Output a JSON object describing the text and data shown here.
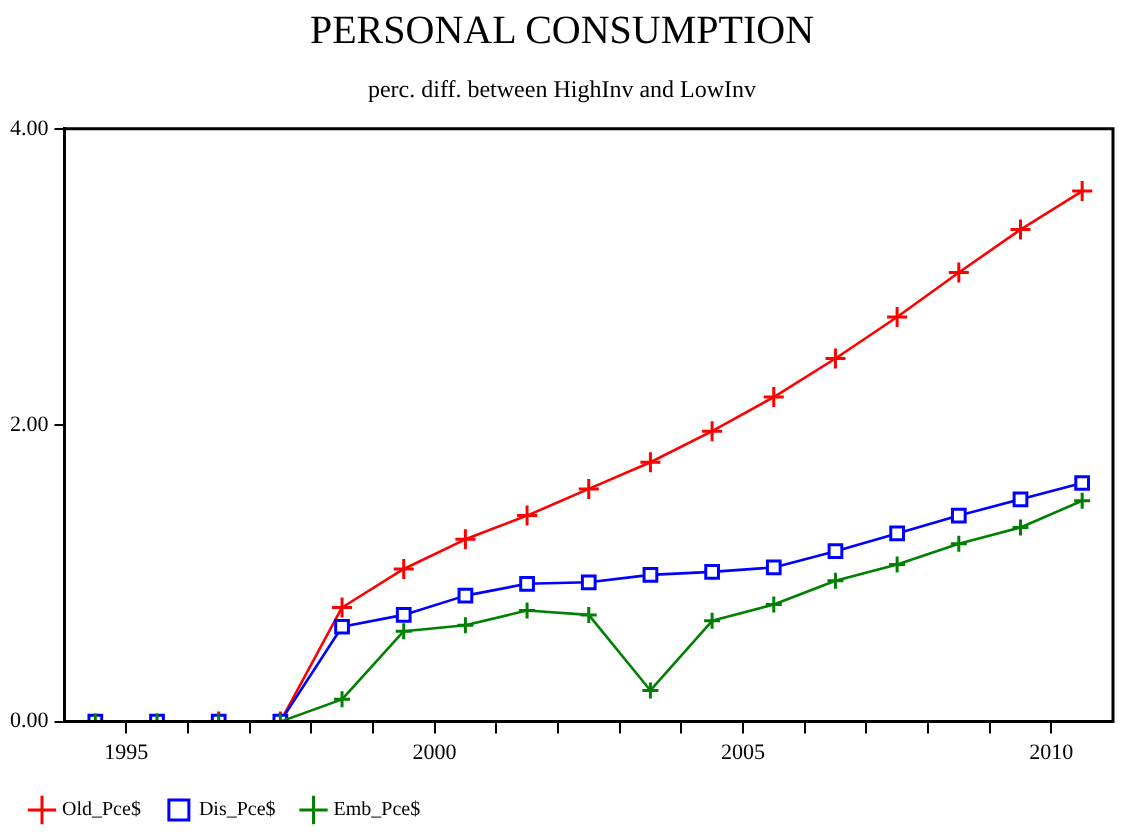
{
  "chart_data": {
    "type": "line",
    "title": "PERSONAL CONSUMPTION",
    "subtitle": "perc. diff. between HighInv and LowInv",
    "x": [
      1994.5,
      1995.5,
      1996.5,
      1997.5,
      1998.5,
      1999.5,
      2000.5,
      2001.5,
      2002.5,
      2003.5,
      2004.5,
      2005.5,
      2006.5,
      2007.5,
      2008.5,
      2009.5,
      2010.5
    ],
    "series": [
      {
        "name": "Old_Pce$",
        "color": "#ff0000",
        "marker": "cross",
        "values": [
          null,
          null,
          0,
          0,
          0.77,
          1.03,
          1.23,
          1.39,
          1.57,
          1.75,
          1.96,
          2.19,
          2.45,
          2.73,
          3.03,
          3.32,
          3.58
        ]
      },
      {
        "name": "Dis_Pce$",
        "color": "#0000ff",
        "marker": "square",
        "values": [
          0,
          0,
          0,
          0,
          0.64,
          0.72,
          0.85,
          0.93,
          0.94,
          0.99,
          1.01,
          1.04,
          1.15,
          1.27,
          1.39,
          1.5,
          1.61
        ]
      },
      {
        "name": "Emb_Pce$",
        "color": "#008000",
        "marker": "cross",
        "values": [
          0,
          0,
          0,
          0,
          0.15,
          0.61,
          0.65,
          0.75,
          0.72,
          0.21,
          0.68,
          0.79,
          0.95,
          1.06,
          1.2,
          1.31,
          1.49
        ]
      }
    ],
    "xlim": [
      1994,
      2011
    ],
    "xticks": [
      1995,
      {
        "value": 1996,
        "label": null
      },
      {
        "value": 1997,
        "label": null
      },
      {
        "value": 1998,
        "label": null
      },
      {
        "value": 1999,
        "label": null
      },
      2000,
      {
        "value": 2001,
        "label": null
      },
      {
        "value": 2002,
        "label": null
      },
      {
        "value": 2003,
        "label": null
      },
      {
        "value": 2004,
        "label": null
      },
      2005,
      {
        "value": 2006,
        "label": null
      },
      {
        "value": 2007,
        "label": null
      },
      {
        "value": 2008,
        "label": null
      },
      {
        "value": 2009,
        "label": null
      },
      2010
    ],
    "ylim": [
      0,
      4
    ],
    "yticks": [
      {
        "value": 0,
        "label": "0.00"
      },
      {
        "value": 2,
        "label": "2.00"
      },
      {
        "value": 4,
        "label": "4.00"
      }
    ],
    "grid": false,
    "legend": "bottom left"
  }
}
